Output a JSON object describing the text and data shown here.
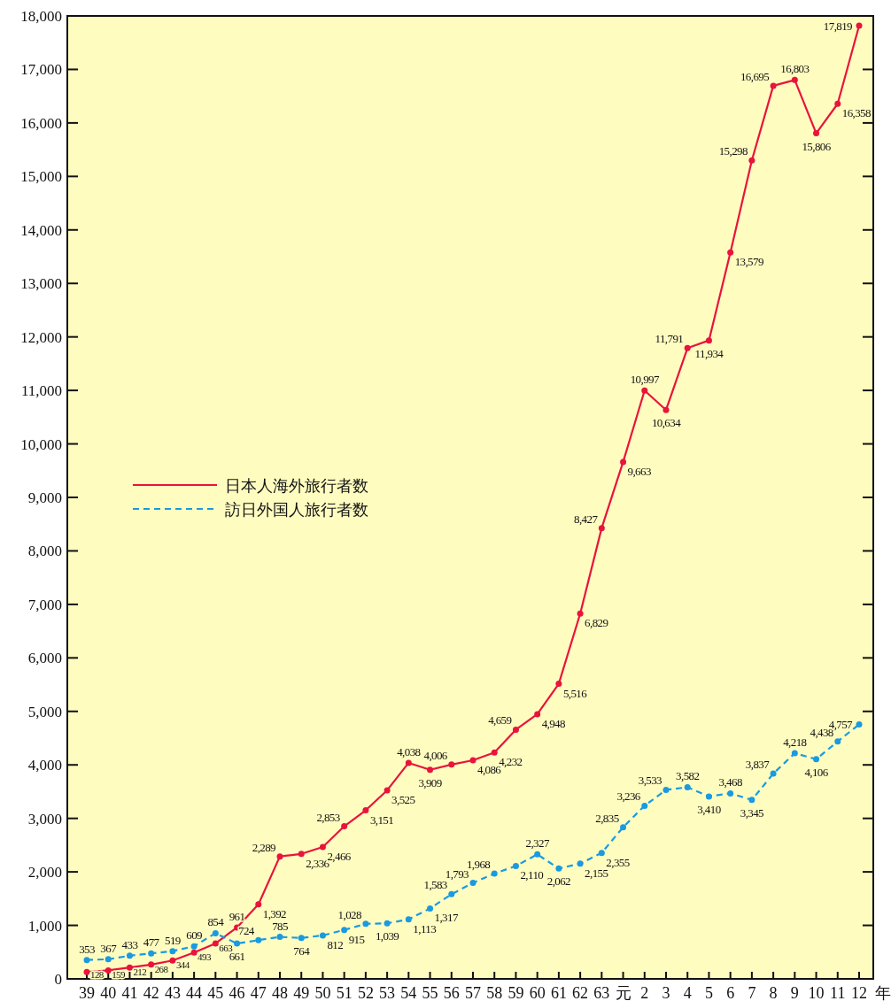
{
  "chart_data": {
    "type": "line",
    "xlabel": "年",
    "categories": [
      "39",
      "40",
      "41",
      "42",
      "43",
      "44",
      "45",
      "46",
      "47",
      "48",
      "49",
      "50",
      "51",
      "52",
      "53",
      "54",
      "55",
      "56",
      "57",
      "58",
      "59",
      "60",
      "61",
      "62",
      "63",
      "元",
      "2",
      "3",
      "4",
      "5",
      "6",
      "7",
      "8",
      "9",
      "10",
      "11",
      "12"
    ],
    "ylim": [
      0,
      18000
    ],
    "yticks": [
      {
        "value": 0,
        "label": "0"
      },
      {
        "value": 1000,
        "label": "1,000"
      },
      {
        "value": 2000,
        "label": "2,000"
      },
      {
        "value": 3000,
        "label": "3,000"
      },
      {
        "value": 4000,
        "label": "4,000"
      },
      {
        "value": 5000,
        "label": "5,000"
      },
      {
        "value": 6000,
        "label": "6,000"
      },
      {
        "value": 7000,
        "label": "7,000"
      },
      {
        "value": 8000,
        "label": "8,000"
      },
      {
        "value": 9000,
        "label": "9,000"
      },
      {
        "value": 10000,
        "label": "10,000"
      },
      {
        "value": 11000,
        "label": "11,000"
      },
      {
        "value": 12000,
        "label": "12,000"
      },
      {
        "value": 13000,
        "label": "13,000"
      },
      {
        "value": 14000,
        "label": "14,000"
      },
      {
        "value": 15000,
        "label": "15,000"
      },
      {
        "value": 16000,
        "label": "16,000"
      },
      {
        "value": 17000,
        "label": "17,000"
      },
      {
        "value": 18000,
        "label": "18,000"
      }
    ],
    "legend": "left",
    "marker": "circle",
    "grid": false,
    "series": [
      {
        "name": "日本人海外旅行者数",
        "color": "#e8143c",
        "line_style": "solid",
        "values": [
          128,
          159,
          212,
          268,
          344,
          493,
          663,
          961,
          1392,
          2289,
          2336,
          2466,
          2853,
          3151,
          3525,
          4038,
          3909,
          4006,
          4086,
          4232,
          4659,
          4948,
          5516,
          6829,
          8427,
          9663,
          10997,
          10634,
          11791,
          11934,
          13579,
          15298,
          16695,
          16803,
          15806,
          16358,
          17819
        ],
        "value_labels": [
          "128",
          "159",
          "212",
          "268",
          "344",
          "493",
          "663",
          "961",
          "1,392",
          "2,289",
          "2,336",
          "2,466",
          "2,853",
          "3,151",
          "3,525",
          "4,038",
          "3,909",
          "4,006",
          "4,086",
          "4,232",
          "4,659",
          "4,948",
          "5,516",
          "6,829",
          "8,427",
          "9,663",
          "10,997",
          "10,634",
          "11,791",
          "11,934",
          "13,579",
          "15,298",
          "16,695",
          "16,803",
          "15,806",
          "16,358",
          "17,819"
        ]
      },
      {
        "name": "訪日外国人旅行者数",
        "color": "#1a9ae0",
        "line_style": "dashed",
        "values": [
          353,
          367,
          433,
          477,
          519,
          609,
          854,
          661,
          724,
          785,
          764,
          812,
          915,
          1028,
          1039,
          1113,
          1317,
          1583,
          1793,
          1968,
          2110,
          2327,
          2062,
          2155,
          2355,
          2835,
          3236,
          3533,
          3582,
          3410,
          3468,
          3345,
          3837,
          4218,
          4106,
          4438,
          4757
        ],
        "value_labels": [
          "353",
          "367",
          "433",
          "477",
          "519",
          "609",
          "854",
          "661",
          "724",
          "785",
          "764",
          "812",
          "915",
          "1,028",
          "1,039",
          "1,113",
          "1,317",
          "1,583",
          "1,793",
          "1,968",
          "2,110",
          "2,327",
          "2,062",
          "2,155",
          "2,355",
          "2,835",
          "3,236",
          "3,533",
          "3,582",
          "3,410",
          "3,468",
          "3,345",
          "3,837",
          "4,218",
          "4,106",
          "4,438",
          "4,757"
        ]
      }
    ]
  }
}
